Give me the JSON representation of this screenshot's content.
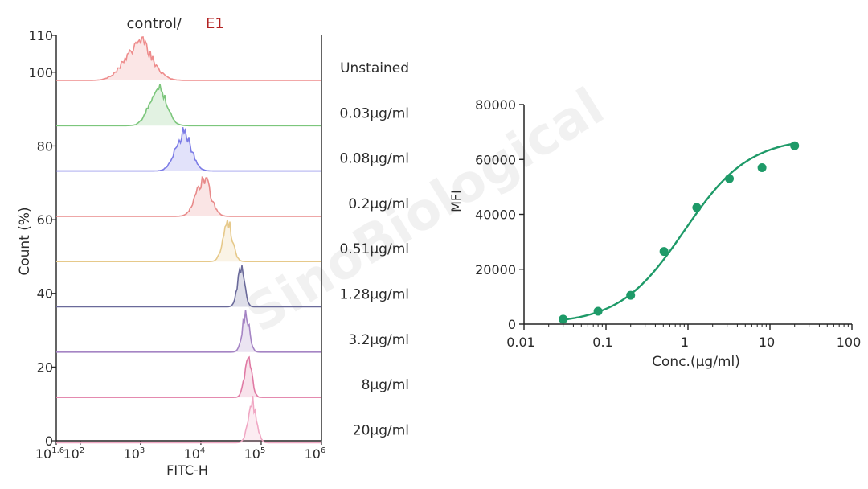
{
  "chart_data": [
    {
      "type": "histogram-overlay",
      "title_prefix": "control/",
      "title_highlight": "E1",
      "title_highlight_color": "#b22222",
      "xlabel": "FITC-H",
      "ylabel": "Count (%)",
      "x_scale": "log",
      "x_tick_labels": [
        {
          "base": "10",
          "exp": "1.6",
          "value": 40
        },
        {
          "base": "10",
          "exp": "2",
          "value": 100
        },
        {
          "base": "10",
          "exp": "3",
          "value": 1000
        },
        {
          "base": "10",
          "exp": "4",
          "value": 10000
        },
        {
          "base": "10",
          "exp": "5",
          "value": 100000
        },
        {
          "base": "10",
          "exp": "6",
          "value": 1000000
        }
      ],
      "y_tick_labels": [
        "0",
        "20",
        "40",
        "60",
        "80",
        "100",
        "110"
      ],
      "series": [
        {
          "name": "Unstained",
          "color": "#ee8c8c",
          "peak_log10": 2.95,
          "width": 0.22
        },
        {
          "name": "0.03μg/ml",
          "color": "#7cc67c",
          "peak_log10": 3.28,
          "width": 0.14
        },
        {
          "name": "0.08μg/ml",
          "color": "#7c7ce6",
          "peak_log10": 3.7,
          "width": 0.13
        },
        {
          "name": "0.2μg/ml",
          "color": "#e88a8a",
          "peak_log10": 4.03,
          "width": 0.12
        },
        {
          "name": "0.51μg/ml",
          "color": "#e6c98a",
          "peak_log10": 4.44,
          "width": 0.08
        },
        {
          "name": "1.28μg/ml",
          "color": "#6a6a9a",
          "peak_log10": 4.66,
          "width": 0.06
        },
        {
          "name": "3.2μg/ml",
          "color": "#a584c4",
          "peak_log10": 4.74,
          "width": 0.06
        },
        {
          "name": "8μg/ml",
          "color": "#e07aa4",
          "peak_log10": 4.78,
          "width": 0.06
        },
        {
          "name": "20μg/ml",
          "color": "#f0a8c4",
          "peak_log10": 4.85,
          "width": 0.07
        }
      ]
    },
    {
      "type": "scatter",
      "xlabel": "Conc.(μg/ml)",
      "ylabel": "MFI",
      "x_scale": "log",
      "xlim": [
        0.01,
        100
      ],
      "ylim": [
        0,
        80000
      ],
      "x_tick_labels": [
        "0.01",
        "0.1",
        "1",
        "10",
        "100"
      ],
      "y_tick_labels": [
        "0",
        "20000",
        "40000",
        "60000",
        "80000"
      ],
      "color": "#1e9a68",
      "x": [
        0.03,
        0.08,
        0.2,
        0.51,
        1.28,
        3.2,
        8,
        20
      ],
      "y": [
        1800,
        4700,
        10500,
        26500,
        42500,
        53000,
        57000,
        65000
      ],
      "fit_curve": true
    }
  ],
  "watermark": "SinoBiological"
}
